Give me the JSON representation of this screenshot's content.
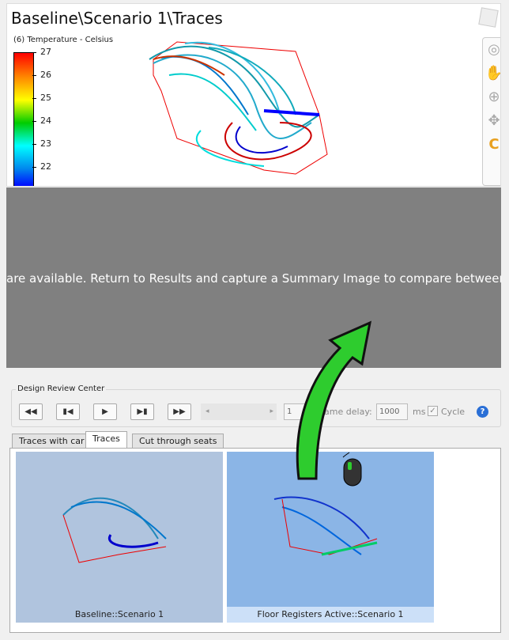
{
  "viewer": {
    "title": "Baseline\\Scenario 1\\Traces",
    "legend_title": "(6) Temperature - Celsius",
    "legend_ticks": [
      "27",
      "26",
      "25",
      "24",
      "23",
      "22"
    ],
    "colormap": [
      "#ff0000",
      "#ff8800",
      "#ffff00",
      "#00cc00",
      "#00ffff",
      "#0088ee",
      "#0000ff"
    ]
  },
  "toolbar": {
    "icons": [
      "view-cube-icon",
      "orbit-icon",
      "pan-hand-icon",
      "zoom-icon",
      "rotate-icon",
      "logo-icon"
    ]
  },
  "message": "are available. Return to Results and capture a Summary Image to compare between desig",
  "review": {
    "group_label": "Design Review Center",
    "frame_value": "1",
    "frame_delay_label": "Frame delay:",
    "frame_delay_value": "1000",
    "ms_label": "ms",
    "cycle_label": "Cycle",
    "cycle_checked": true
  },
  "tabs": [
    {
      "label": "Traces with car"
    },
    {
      "label": "Traces",
      "active": true
    },
    {
      "label": "Cut through seats"
    }
  ],
  "thumbnails": [
    {
      "label": "Baseline::Scenario 1"
    },
    {
      "label": "Floor Registers Active::Scenario 1",
      "selected": true
    }
  ],
  "colors": {
    "selected_bg": "#8bb5e6",
    "selected_label": "#cce0f8",
    "arrow": "#2ecc2e"
  }
}
